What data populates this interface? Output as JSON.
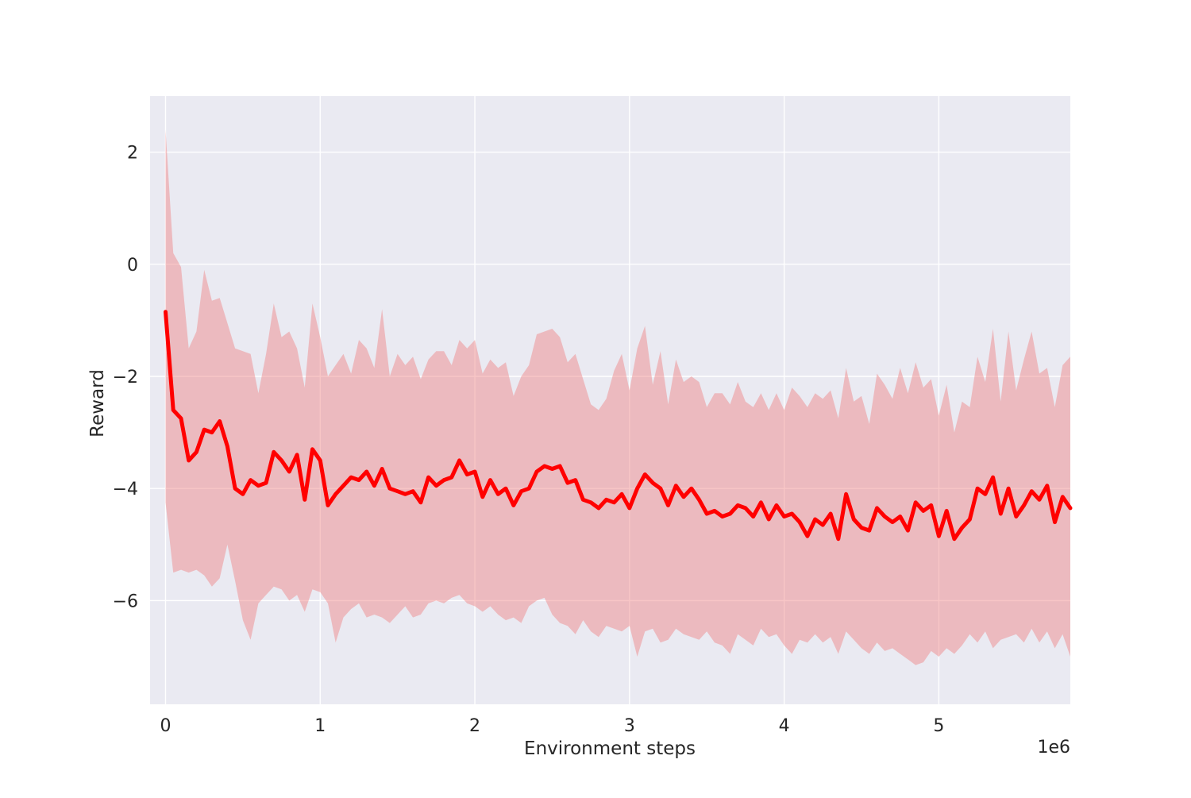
{
  "chart_data": {
    "type": "line",
    "title": "",
    "xlabel": "Environment steps",
    "ylabel": "Reward",
    "x_offset_label": "1e6",
    "xlim": [
      -0.1,
      5.85
    ],
    "ylim": [
      -7.85,
      3.0
    ],
    "x_ticks": [
      0,
      1,
      2,
      3,
      4,
      5
    ],
    "x_tick_labels": [
      "0",
      "1",
      "2",
      "3",
      "4",
      "5"
    ],
    "y_ticks": [
      2,
      0,
      -2,
      -4,
      -6
    ],
    "y_tick_labels": [
      "2",
      "0",
      "−2",
      "−4",
      "−6"
    ],
    "grid": true,
    "legend": "none",
    "colors": {
      "line": "#ff0000",
      "band": "#f08080",
      "background": "#eaeaf2",
      "grid": "#ffffff"
    },
    "series": [
      {
        "x": [
          0.0,
          0.05,
          0.1,
          0.15,
          0.2,
          0.25,
          0.3,
          0.35,
          0.4,
          0.45,
          0.5,
          0.55,
          0.6,
          0.65,
          0.7,
          0.75,
          0.8,
          0.85,
          0.9,
          0.95,
          1.0,
          1.05,
          1.1,
          1.15,
          1.2,
          1.25,
          1.3,
          1.35,
          1.4,
          1.45,
          1.5,
          1.55,
          1.6,
          1.65,
          1.7,
          1.75,
          1.8,
          1.85,
          1.9,
          1.95,
          2.0,
          2.05,
          2.1,
          2.15,
          2.2,
          2.25,
          2.3,
          2.35,
          2.4,
          2.45,
          2.5,
          2.55,
          2.6,
          2.65,
          2.7,
          2.75,
          2.8,
          2.85,
          2.9,
          2.95,
          3.0,
          3.05,
          3.1,
          3.15,
          3.2,
          3.25,
          3.3,
          3.35,
          3.4,
          3.45,
          3.5,
          3.55,
          3.6,
          3.65,
          3.7,
          3.75,
          3.8,
          3.85,
          3.9,
          3.95,
          4.0,
          4.05,
          4.1,
          4.15,
          4.2,
          4.25,
          4.3,
          4.35,
          4.4,
          4.45,
          4.5,
          4.55,
          4.6,
          4.65,
          4.7,
          4.75,
          4.8,
          4.85,
          4.9,
          4.95,
          5.0,
          5.05,
          5.1,
          5.15,
          5.2,
          5.25,
          5.3,
          5.35,
          5.4,
          5.45,
          5.5,
          5.55,
          5.6,
          5.65,
          5.7,
          5.75,
          5.8,
          5.85
        ],
        "y": [
          -0.85,
          -2.6,
          -2.75,
          -3.5,
          -3.35,
          -2.95,
          -3.0,
          -2.8,
          -3.25,
          -4.0,
          -4.1,
          -3.85,
          -3.95,
          -3.9,
          -3.35,
          -3.5,
          -3.7,
          -3.4,
          -4.2,
          -3.3,
          -3.5,
          -4.3,
          -4.1,
          -3.95,
          -3.8,
          -3.85,
          -3.7,
          -3.95,
          -3.65,
          -4.0,
          -4.05,
          -4.1,
          -4.05,
          -4.25,
          -3.8,
          -3.95,
          -3.85,
          -3.8,
          -3.5,
          -3.75,
          -3.7,
          -4.15,
          -3.85,
          -4.1,
          -4.0,
          -4.3,
          -4.05,
          -4.0,
          -3.7,
          -3.6,
          -3.65,
          -3.6,
          -3.9,
          -3.85,
          -4.2,
          -4.25,
          -4.35,
          -4.2,
          -4.25,
          -4.1,
          -4.35,
          -4.0,
          -3.75,
          -3.9,
          -4.0,
          -4.3,
          -3.95,
          -4.15,
          -4.0,
          -4.2,
          -4.45,
          -4.4,
          -4.5,
          -4.45,
          -4.3,
          -4.35,
          -4.5,
          -4.25,
          -4.55,
          -4.3,
          -4.5,
          -4.45,
          -4.6,
          -4.85,
          -4.55,
          -4.65,
          -4.45,
          -4.9,
          -4.1,
          -4.55,
          -4.7,
          -4.75,
          -4.35,
          -4.5,
          -4.6,
          -4.5,
          -4.75,
          -4.25,
          -4.4,
          -4.3,
          -4.85,
          -4.4,
          -4.9,
          -4.7,
          -4.55,
          -4.0,
          -4.1,
          -3.8,
          -4.45,
          -4.0,
          -4.5,
          -4.3,
          -4.05,
          -4.2,
          -3.95,
          -4.6,
          -4.15,
          -4.35
        ],
        "upper": [
          2.4,
          0.2,
          -0.05,
          -1.5,
          -1.2,
          -0.1,
          -0.65,
          -0.6,
          -1.05,
          -1.5,
          -1.55,
          -1.6,
          -2.3,
          -1.6,
          -0.7,
          -1.3,
          -1.2,
          -1.5,
          -2.2,
          -0.7,
          -1.3,
          -2.0,
          -1.8,
          -1.6,
          -1.95,
          -1.35,
          -1.5,
          -1.85,
          -0.8,
          -2.0,
          -1.6,
          -1.8,
          -1.65,
          -2.05,
          -1.7,
          -1.55,
          -1.55,
          -1.8,
          -1.35,
          -1.5,
          -1.35,
          -1.95,
          -1.7,
          -1.85,
          -1.75,
          -2.35,
          -2.0,
          -1.8,
          -1.25,
          -1.2,
          -1.15,
          -1.3,
          -1.75,
          -1.6,
          -2.05,
          -2.5,
          -2.6,
          -2.4,
          -1.9,
          -1.6,
          -2.25,
          -1.5,
          -1.1,
          -2.15,
          -1.55,
          -2.5,
          -1.7,
          -2.1,
          -2.0,
          -2.1,
          -2.55,
          -2.3,
          -2.3,
          -2.5,
          -2.1,
          -2.45,
          -2.55,
          -2.3,
          -2.6,
          -2.3,
          -2.6,
          -2.2,
          -2.35,
          -2.55,
          -2.3,
          -2.4,
          -2.25,
          -2.75,
          -1.85,
          -2.45,
          -2.35,
          -2.85,
          -1.95,
          -2.15,
          -2.4,
          -1.85,
          -2.3,
          -1.75,
          -2.2,
          -2.05,
          -2.7,
          -2.15,
          -3.0,
          -2.45,
          -2.55,
          -1.65,
          -2.1,
          -1.15,
          -2.45,
          -1.2,
          -2.25,
          -1.7,
          -1.2,
          -1.95,
          -1.85,
          -2.55,
          -1.8,
          -1.65
        ],
        "lower": [
          -4.25,
          -5.5,
          -5.45,
          -5.5,
          -5.45,
          -5.55,
          -5.75,
          -5.6,
          -5.0,
          -5.65,
          -6.35,
          -6.7,
          -6.05,
          -5.9,
          -5.75,
          -5.8,
          -6.0,
          -5.9,
          -6.2,
          -5.8,
          -5.85,
          -6.05,
          -6.75,
          -6.3,
          -6.15,
          -6.05,
          -6.3,
          -6.25,
          -6.3,
          -6.4,
          -6.25,
          -6.1,
          -6.3,
          -6.25,
          -6.05,
          -6.0,
          -6.05,
          -5.95,
          -5.9,
          -6.05,
          -6.1,
          -6.2,
          -6.1,
          -6.25,
          -6.35,
          -6.3,
          -6.4,
          -6.1,
          -6.0,
          -5.95,
          -6.25,
          -6.4,
          -6.45,
          -6.6,
          -6.35,
          -6.55,
          -6.65,
          -6.45,
          -6.5,
          -6.55,
          -6.45,
          -7.0,
          -6.55,
          -6.5,
          -6.75,
          -6.7,
          -6.5,
          -6.6,
          -6.65,
          -6.7,
          -6.55,
          -6.75,
          -6.8,
          -6.95,
          -6.6,
          -6.7,
          -6.8,
          -6.5,
          -6.65,
          -6.6,
          -6.8,
          -6.95,
          -6.7,
          -6.75,
          -6.6,
          -6.75,
          -6.65,
          -6.95,
          -6.55,
          -6.7,
          -6.85,
          -6.95,
          -6.75,
          -6.9,
          -6.85,
          -6.95,
          -7.05,
          -7.15,
          -7.1,
          -6.9,
          -7.0,
          -6.85,
          -6.95,
          -6.8,
          -6.6,
          -6.75,
          -6.55,
          -6.85,
          -6.7,
          -6.65,
          -6.6,
          -6.75,
          -6.5,
          -6.75,
          -6.55,
          -6.85,
          -6.6,
          -7.0
        ]
      }
    ]
  }
}
